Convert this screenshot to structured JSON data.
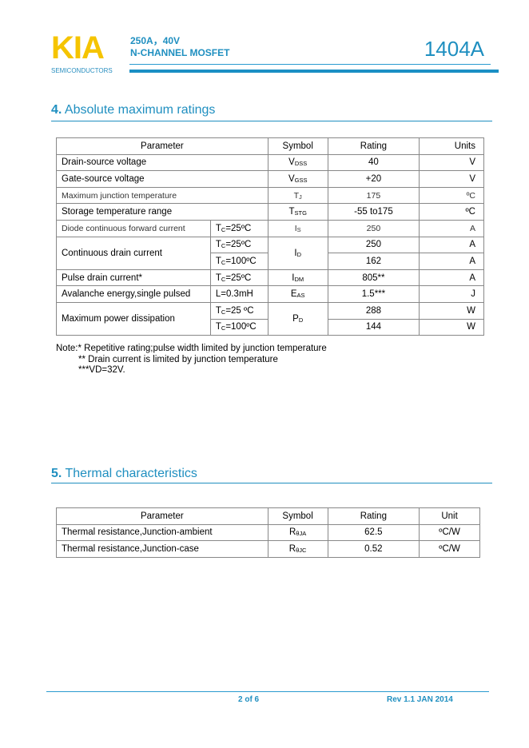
{
  "header": {
    "logo": "KIA",
    "logo_sub": "SEMICONDUCTORS",
    "line1": "250A，40V",
    "line2": "N-CHANNEL MOSFET",
    "part": "1404A",
    "colors": {
      "logo": "#f5c400",
      "accent": "#1f8fc0"
    }
  },
  "section4": {
    "num": "4.",
    "title": "Absolute maximum ratings",
    "headers": [
      "Parameter",
      "Symbol",
      "Rating",
      "Units"
    ],
    "rows": [
      {
        "param": "Drain-source voltage",
        "sym": "V",
        "sym_sub": "DSS",
        "rating": "40",
        "unit": "V"
      },
      {
        "param": "Gate-source voltage",
        "sym": "V",
        "sym_sub": "GSS",
        "rating": "+20",
        "unit": "V"
      },
      {
        "param": "Maximum junction temperature",
        "sym": "T",
        "sym_sub": "J",
        "rating": "175",
        "unit": "ºC"
      },
      {
        "param": "Storage temperature range",
        "sym": "T",
        "sym_sub": "STG",
        "rating": "-55 to175",
        "unit": "ºC"
      },
      {
        "param": "Diode continuous forward current",
        "cond": "=25ºC",
        "sym": "I",
        "sym_sub": "S",
        "rating": "250",
        "unit": "A"
      },
      {
        "param": "Continuous drain current",
        "cond": "=25ºC",
        "sym": "I",
        "sym_sub": "D",
        "rating": "250",
        "unit": "A"
      },
      {
        "cond": "=100ºC",
        "rating": "162",
        "unit": "A"
      },
      {
        "param": "Pulse drain current*",
        "cond": "=25ºC",
        "sym": "I",
        "sym_sub": "DM",
        "rating": "805**",
        "unit": "A"
      },
      {
        "param": "Avalanche energy,single pulsed",
        "cond": "L=0.3mH",
        "sym": "E",
        "sym_sub": "AS",
        "rating": "1.5***",
        "unit": "J"
      },
      {
        "param": "Maximum power dissipation",
        "cond": "=25 ºC",
        "sym": "P",
        "sym_sub": "D",
        "rating": "288",
        "unit": "W"
      },
      {
        "cond": "=100ºC",
        "rating": "144",
        "unit": "W"
      }
    ],
    "cond_prefix": "T",
    "cond_sub": "C",
    "notes": [
      "Note:*    Repetitive rating;pulse width limited by junction temperature",
      "** Drain current is limited by junction temperature",
      "***VD=32V."
    ]
  },
  "section5": {
    "num": "5.",
    "title": "Thermal characteristics",
    "headers": [
      "Parameter",
      "Symbol",
      "Rating",
      "Unit"
    ],
    "rows": [
      {
        "param": "Thermal resistance,Junction-ambient",
        "sym": "R",
        "sym_sub": "θJA",
        "rating": "62.5",
        "unit": "ºC/W"
      },
      {
        "param": "Thermal resistance,Junction-case",
        "sym": "R",
        "sym_sub": "θJC",
        "rating": "0.52",
        "unit": "ºC/W"
      }
    ]
  },
  "footer": {
    "page": "2 of 6",
    "rev": "Rev 1.1 JAN 2014"
  }
}
